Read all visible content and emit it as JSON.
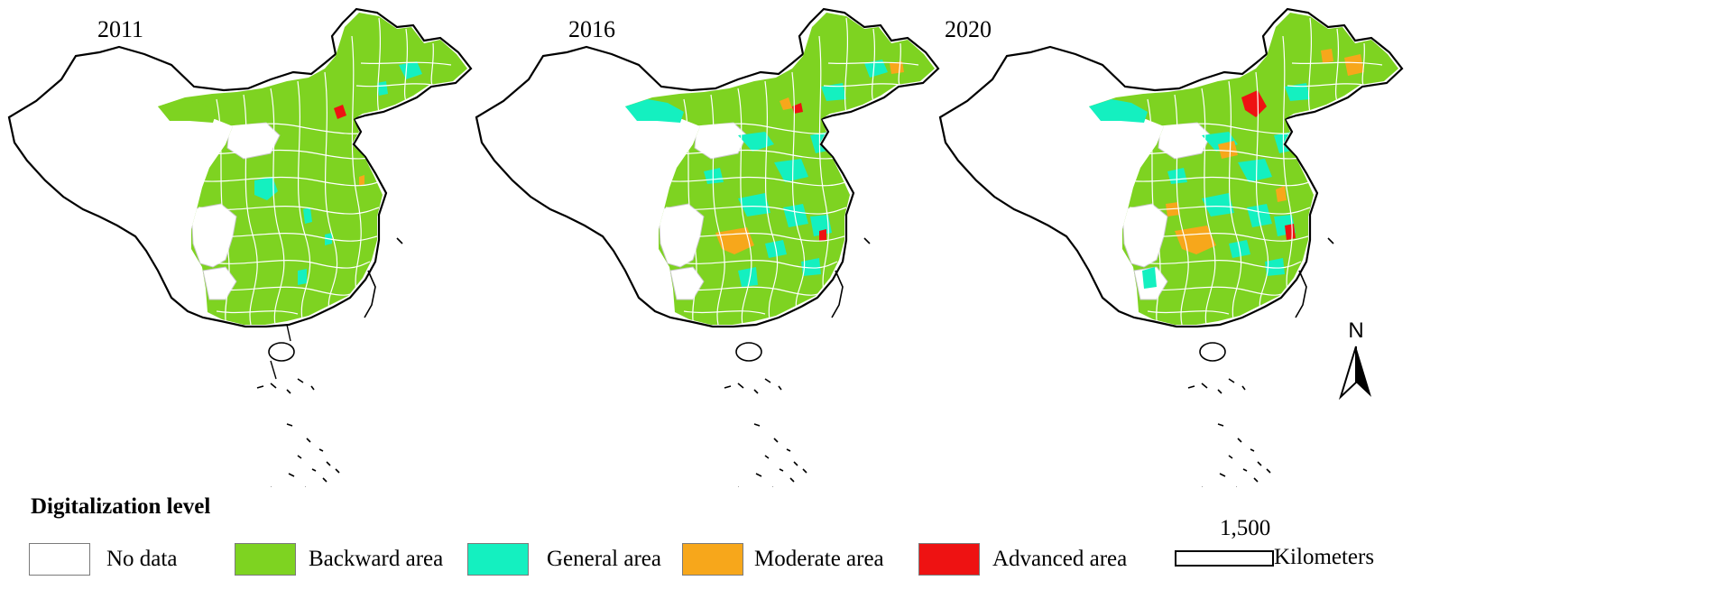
{
  "maps": [
    {
      "year": "2011",
      "levels": {
        "backward": "dominant",
        "general": "few",
        "moderate": "very few",
        "advanced": "very few"
      }
    },
    {
      "year": "2016",
      "levels": {
        "backward": "dominant",
        "general": "many",
        "moderate": "few",
        "advanced": "very few"
      }
    },
    {
      "year": "2020",
      "levels": {
        "backward": "dominant",
        "general": "many",
        "moderate": "some",
        "advanced": "few"
      }
    }
  ],
  "legend": {
    "title": "Digitalization level",
    "items": [
      {
        "label": "No data",
        "color": "#ffffff"
      },
      {
        "label": "Backward area",
        "color": "#7ed321"
      },
      {
        "label": "General area",
        "color": "#14f0c0"
      },
      {
        "label": "Moderate area",
        "color": "#f7a71b"
      },
      {
        "label": "Advanced area",
        "color": "#ee1212"
      }
    ]
  },
  "scale_bar": {
    "value": "1,500",
    "unit": "Kilometers"
  },
  "north_arrow": {
    "label": "N",
    "icon": "north-arrow-icon"
  }
}
